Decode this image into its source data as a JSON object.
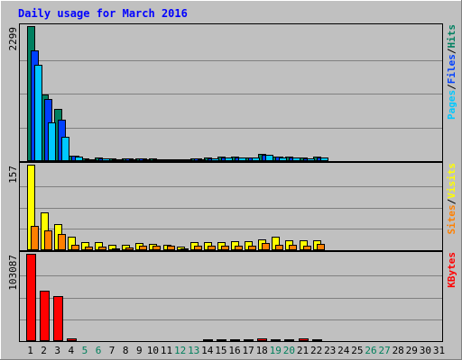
{
  "chart_data": {
    "type": "bar",
    "title": "Daily usage for March 2016",
    "x": [
      1,
      2,
      3,
      4,
      5,
      6,
      7,
      8,
      9,
      10,
      11,
      12,
      13,
      14,
      15,
      16,
      17,
      18,
      19,
      20,
      21,
      22,
      23,
      24,
      25,
      26,
      27,
      28,
      29,
      30,
      31
    ],
    "weekend_days": [
      5,
      6,
      12,
      13,
      19,
      20,
      26,
      27
    ],
    "panels": [
      {
        "id": "hits",
        "max_label": "2299",
        "ymax": 2299,
        "legend": [
          {
            "text": "Pages",
            "color": "#00c8ff"
          },
          {
            "text": "/",
            "color": "#000000"
          },
          {
            "text": "Files",
            "color": "#0040ff"
          },
          {
            "text": "/",
            "color": "#000000"
          },
          {
            "text": "Hits",
            "color": "#008060"
          }
        ],
        "series": [
          {
            "name": "Hits",
            "color": "#008060",
            "values": [
              2299,
              1130,
              890,
              95,
              40,
              60,
              40,
              45,
              48,
              40,
              35,
              38,
              45,
              58,
              70,
              75,
              68,
              125,
              80,
              70,
              58,
              72,
              null,
              null,
              null,
              null,
              null,
              null,
              null,
              null,
              null
            ]
          },
          {
            "name": "Files",
            "color": "#0040ff",
            "values": [
              1880,
              1050,
              700,
              85,
              35,
              52,
              35,
              40,
              42,
              36,
              30,
              34,
              40,
              50,
              62,
              68,
              62,
              112,
              72,
              62,
              52,
              65,
              null,
              null,
              null,
              null,
              null,
              null,
              null,
              null,
              null
            ]
          },
          {
            "name": "Pages",
            "color": "#00c8ff",
            "values": [
              1640,
              660,
              410,
              70,
              30,
              45,
              30,
              34,
              36,
              32,
              27,
              30,
              35,
              44,
              55,
              60,
              55,
              100,
              63,
              55,
              46,
              58,
              null,
              null,
              null,
              null,
              null,
              null,
              null,
              null,
              null
            ]
          }
        ]
      },
      {
        "id": "visits",
        "max_label": "157",
        "ymax": 157,
        "legend": [
          {
            "text": "Sites",
            "color": "#ff8000"
          },
          {
            "text": "/",
            "color": "#000000"
          },
          {
            "text": "Visits",
            "color": "#ffff00"
          }
        ],
        "series": [
          {
            "name": "Visits",
            "color": "#ffff00",
            "values": [
              157,
              70,
              48,
              24,
              15,
              15,
              10,
              10,
              13,
              12,
              10,
              6,
              15,
              15,
              15,
              17,
              16,
              20,
              25,
              19,
              18,
              19,
              null,
              null,
              null,
              null,
              null,
              null,
              null,
              null,
              null
            ]
          },
          {
            "name": "Sites",
            "color": "#ff8000",
            "values": [
              44,
              37,
              29,
              10,
              6,
              6,
              4,
              5,
              9,
              9,
              9,
              3,
              9,
              9,
              9,
              9,
              8,
              13,
              10,
              10,
              9,
              11,
              null,
              null,
              null,
              null,
              null,
              null,
              null,
              null,
              null
            ]
          }
        ]
      },
      {
        "id": "kbytes",
        "max_label": "103087",
        "ymax": 103087,
        "legend": [
          {
            "text": "KBytes",
            "color": "#ff0000"
          }
        ],
        "series": [
          {
            "name": "KBytes",
            "color": "#ff0000",
            "values": [
              103087,
              59500,
              52800,
              3100,
              1200,
              1500,
              1100,
              1200,
              1500,
              1100,
              900,
              1000,
              1500,
              2000,
              2200,
              2400,
              2500,
              3500,
              2500,
              2100,
              2800,
              2500,
              null,
              null,
              null,
              null,
              null,
              null,
              null,
              null,
              null
            ]
          }
        ]
      }
    ],
    "grid": true
  },
  "colors": {
    "background": "#c0c0c0",
    "plot_border": "#000000",
    "title": "#0000ff",
    "weekday_label": "#000000",
    "weekend_label": "#00805c"
  }
}
